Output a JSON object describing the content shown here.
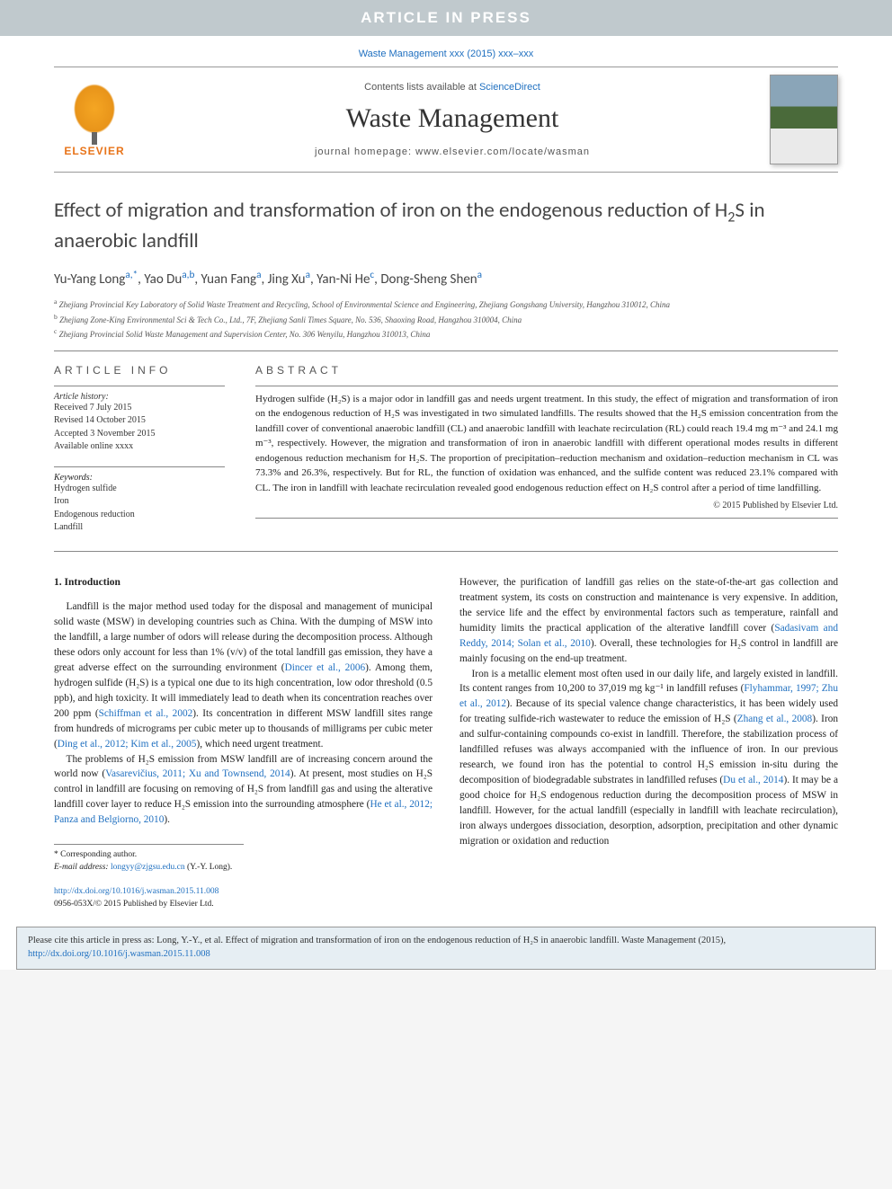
{
  "banner": {
    "text": "ARTICLE IN PRESS"
  },
  "citation_line": "Waste Management xxx (2015) xxx–xxx",
  "header": {
    "publisher": "ELSEVIER",
    "contents_prefix": "Contents lists available at ",
    "contents_link": "ScienceDirect",
    "journal": "Waste Management",
    "homepage_prefix": "journal homepage: ",
    "homepage_url": "www.elsevier.com/locate/wasman"
  },
  "article": {
    "title_before": "Effect of migration and transformation of iron on the endogenous reduction of H",
    "title_sub": "2",
    "title_after": "S in anaerobic landfill",
    "authors": [
      {
        "name": "Yu-Yang Long",
        "aff": "a,*"
      },
      {
        "name": "Yao Du",
        "aff": "a,b"
      },
      {
        "name": "Yuan Fang",
        "aff": "a"
      },
      {
        "name": "Jing Xu",
        "aff": "a"
      },
      {
        "name": "Yan-Ni He",
        "aff": "c"
      },
      {
        "name": "Dong-Sheng Shen",
        "aff": "a"
      }
    ],
    "affiliations": [
      {
        "sup": "a",
        "text": "Zhejiang Provincial Key Laboratory of Solid Waste Treatment and Recycling, School of Environmental Science and Engineering, Zhejiang Gongshang University, Hangzhou 310012, China"
      },
      {
        "sup": "b",
        "text": "Zhejiang Zone-King Environmental Sci & Tech Co., Ltd., 7F, Zhejiang Sanli Times Square, No. 536, Shaoxing Road, Hangzhou 310004, China"
      },
      {
        "sup": "c",
        "text": "Zhejiang Provincial Solid Waste Management and Supervision Center, No. 306 Wenyilu, Hangzhou 310013, China"
      }
    ]
  },
  "info": {
    "heading_left": "article info",
    "heading_right": "abstract",
    "history_label": "Article history:",
    "history": [
      "Received 7 July 2015",
      "Revised 14 October 2015",
      "Accepted 3 November 2015",
      "Available online xxxx"
    ],
    "keywords_label": "Keywords:",
    "keywords": [
      "Hydrogen sulfide",
      "Iron",
      "Endogenous reduction",
      "Landfill"
    ],
    "abstract": "Hydrogen sulfide (H₂S) is a major odor in landfill gas and needs urgent treatment. In this study, the effect of migration and transformation of iron on the endogenous reduction of H₂S was investigated in two simulated landfills. The results showed that the H₂S emission concentration from the landfill cover of conventional anaerobic landfill (CL) and anaerobic landfill with leachate recirculation (RL) could reach 19.4 mg m⁻³ and 24.1 mg m⁻³, respectively. However, the migration and transformation of iron in anaerobic landfill with different operational modes results in different endogenous reduction mechanism for H₂S. The proportion of precipitation–reduction mechanism and oxidation–reduction mechanism in CL was 73.3% and 26.3%, respectively. But for RL, the function of oxidation was enhanced, and the sulfide content was reduced 23.1% compared with CL. The iron in landfill with leachate recirculation revealed good endogenous reduction effect on H₂S control after a period of time landfilling.",
    "copyright": "© 2015 Published by Elsevier Ltd."
  },
  "section1": {
    "heading": "1. Introduction",
    "p1_a": "Landfill is the major method used today for the disposal and management of municipal solid waste (MSW) in developing countries such as China. With the dumping of MSW into the landfill, a large number of odors will release during the decomposition process. Although these odors only account for less than 1% (v/v) of the total landfill gas emission, they have a great adverse effect on the surrounding environment (",
    "p1_c1": "Dincer et al., 2006",
    "p1_b": "). Among them, hydrogen sulfide (H₂S) is a typical one due to its high concentration, low odor threshold (0.5 ppb), and high toxicity. It will immediately lead to death when its concentration reaches over 200 ppm (",
    "p1_c2": "Schiffman et al., 2002",
    "p1_c": "). Its concentration in different MSW landfill sites range from hundreds of micrograms per cubic meter up to thousands of milligrams per cubic meter (",
    "p1_c3": "Ding et al., 2012; Kim et al., 2005",
    "p1_d": "), which need urgent treatment.",
    "p2_a": "The problems of H₂S emission from MSW landfill are of increasing concern around the world now (",
    "p2_c1": "Vasarevičius, 2011; Xu and Townsend, 2014",
    "p2_b": "). At present, most studies on H₂S control in landfill are focusing on removing of H₂S from landfill gas and using the alterative landfill cover layer to reduce H₂S emission into the surrounding atmosphere (",
    "p2_c2": "He et al., 2012; Panza and Belgiorno, 2010",
    "p2_c": ").",
    "p3_a": "However, the purification of landfill gas relies on the state-of-the-art gas collection and treatment system, its costs on construction and maintenance is very expensive. In addition, the service life and the effect by environmental factors such as temperature, rainfall and humidity limits the practical application of the alterative landfill cover (",
    "p3_c1": "Sadasivam and Reddy, 2014; Solan et al., 2010",
    "p3_b": "). Overall, these technologies for H₂S control in landfill are mainly focusing on the end-up treatment.",
    "p4_a": "Iron is a metallic element most often used in our daily life, and largely existed in landfill. Its content ranges from 10,200 to 37,019 mg kg⁻¹ in landfill refuses (",
    "p4_c1": "Flyhammar, 1997; Zhu et al., 2012",
    "p4_b": "). Because of its special valence change characteristics, it has been widely used for treating sulfide-rich wastewater to reduce the emission of H₂S (",
    "p4_c2": "Zhang et al., 2008",
    "p4_c": "). Iron and sulfur-containing compounds co-exist in landfill. Therefore, the stabilization process of landfilled refuses was always accompanied with the influence of iron. In our previous research, we found iron has the potential to control H₂S emission in-situ during the decomposition of biodegradable substrates in landfilled refuses (",
    "p4_c3": "Du et al., 2014",
    "p4_d": "). It may be a good choice for H₂S endogenous reduction during the decomposition process of MSW in landfill. However, for the actual landfill (especially in landfill with leachate recirculation), iron always undergoes dissociation, desorption, adsorption, precipitation and other dynamic migration or oxidation and reduction"
  },
  "correspondence": {
    "label": "* Corresponding author.",
    "email_label": "E-mail address: ",
    "email": "longyy@zjgsu.edu.cn",
    "email_who": " (Y.-Y. Long)."
  },
  "doi": {
    "url": "http://dx.doi.org/10.1016/j.wasman.2015.11.008",
    "issn": "0956-053X/© 2015 Published by Elsevier Ltd."
  },
  "footer_cite": {
    "prefix": "Please cite this article in press as: Long, Y.-Y., et al. Effect of migration and transformation of iron on the endogenous reduction of H₂S in anaerobic landfill. Waste Management (2015), ",
    "doi": "http://dx.doi.org/10.1016/j.wasman.2015.11.008"
  },
  "colors": {
    "banner_bg": "#c0c9cd",
    "link": "#2070c0",
    "publisher": "#e8741a",
    "footer_bg": "#e6eef3"
  }
}
